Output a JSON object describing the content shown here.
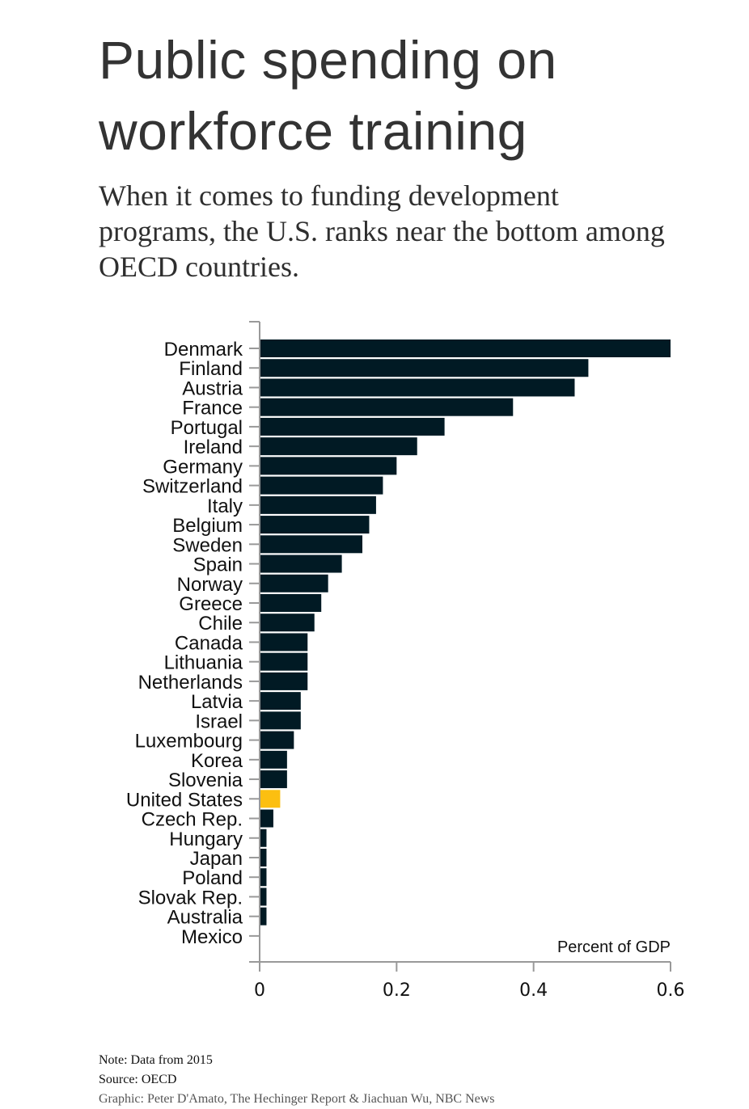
{
  "header": {
    "title_line1": "Public spending on",
    "title_line2": "workforce training",
    "subtitle": "When it comes to funding development programs, the U.S. ranks near the bottom among OECD countries."
  },
  "colors": {
    "bar": "#011a24",
    "highlight": "#fcbf10",
    "axis": "#999999",
    "text": "#111111"
  },
  "chart_data": {
    "type": "bar",
    "orientation": "horizontal",
    "title": "Public spending on workforce training",
    "xlabel": "Percent of GDP",
    "ylabel": "",
    "xlim": [
      0,
      0.6
    ],
    "xticks": [
      0,
      0.2,
      0.4,
      0.6
    ],
    "xtick_labels": [
      "0",
      "0.2",
      "0.4",
      "0.6"
    ],
    "grid": false,
    "highlight_category": "United States",
    "categories": [
      "Denmark",
      "Finland",
      "Austria",
      "France",
      "Portugal",
      "Ireland",
      "Germany",
      "Switzerland",
      "Italy",
      "Belgium",
      "Sweden",
      "Spain",
      "Norway",
      "Greece",
      "Chile",
      "Canada",
      "Lithuania",
      "Netherlands",
      "Latvia",
      "Israel",
      "Luxembourg",
      "Korea",
      "Slovenia",
      "United States",
      "Czech Rep.",
      "Hungary",
      "Japan",
      "Poland",
      "Slovak Rep.",
      "Australia",
      "Mexico"
    ],
    "values": [
      0.6,
      0.48,
      0.46,
      0.37,
      0.27,
      0.23,
      0.2,
      0.18,
      0.17,
      0.16,
      0.15,
      0.12,
      0.1,
      0.09,
      0.08,
      0.07,
      0.07,
      0.07,
      0.06,
      0.06,
      0.05,
      0.04,
      0.04,
      0.03,
      0.02,
      0.01,
      0.01,
      0.01,
      0.01,
      0.01,
      0.0
    ]
  },
  "footer": {
    "note": "Note: Data from 2015",
    "source": "Source: OECD",
    "credit": "Graphic: Peter D'Amato, The Hechinger Report & Jiachuan Wu, NBC News"
  }
}
